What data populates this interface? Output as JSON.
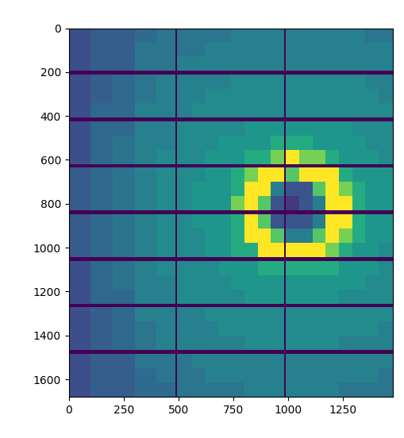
{
  "chart_data": {
    "type": "heatmap",
    "x_edges": [
      0,
      100,
      200,
      300,
      400,
      487,
      494,
      560,
      620,
      680,
      740,
      800,
      860,
      920,
      981,
      988,
      1050,
      1110,
      1170,
      1230,
      1290,
      1350,
      1410,
      1475
    ],
    "y_edges": [
      0,
      65,
      130,
      195,
      212,
      277,
      342,
      407,
      424,
      489,
      554,
      619,
      636,
      701,
      766,
      831,
      848,
      913,
      978,
      1043,
      1060,
      1125,
      1190,
      1255,
      1272,
      1337,
      1402,
      1467,
      1484,
      1549,
      1614,
      1679
    ],
    "cells": [
      [
        2.3,
        2.8,
        2.8,
        3.3,
        3.7,
        0,
        3.7,
        3.7,
        3.7,
        3.7,
        4.1,
        4.1,
        4.1,
        4.1,
        0,
        4.1,
        4.1,
        4.1,
        4.1,
        4.1,
        4.1,
        3.7,
        3.7
      ],
      [
        2.3,
        2.8,
        2.8,
        3.7,
        3.7,
        0,
        3.7,
        3.7,
        4.1,
        4.1,
        4.1,
        4.1,
        4.1,
        4.1,
        0,
        4.1,
        4.1,
        4.1,
        4.1,
        4.1,
        4.1,
        4.1,
        4.1
      ],
      [
        2.3,
        2.8,
        2.8,
        3.7,
        3.7,
        0,
        4.1,
        4.1,
        4.1,
        4.1,
        4.1,
        4.1,
        4.1,
        4.1,
        0,
        4.1,
        4.1,
        4.1,
        4.1,
        4.1,
        4.1,
        4.1,
        4.1
      ],
      [
        0,
        0,
        0,
        0,
        0,
        0,
        0,
        0,
        0,
        0,
        0,
        0,
        0,
        0,
        0,
        0,
        0,
        0,
        0,
        0,
        0,
        0,
        0
      ],
      [
        2.3,
        2.8,
        3.2,
        3.7,
        4.1,
        0,
        4.1,
        4.1,
        4.1,
        4.1,
        4.5,
        4.5,
        4.5,
        4.5,
        0,
        4.5,
        4.5,
        4.5,
        4.5,
        4.5,
        4.5,
        4.1,
        4.1
      ],
      [
        2.3,
        2.8,
        3.2,
        3.7,
        4.1,
        0,
        4.1,
        4.1,
        4.5,
        4.5,
        4.5,
        4.5,
        4.5,
        4.5,
        0,
        4.5,
        4.5,
        4.5,
        4.5,
        4.5,
        4.5,
        4.5,
        4.1
      ],
      [
        2.3,
        3.2,
        3.2,
        4.1,
        4.1,
        0,
        4.1,
        4.5,
        4.5,
        4.5,
        4.5,
        4.5,
        4.5,
        4.5,
        0,
        4.5,
        4.5,
        4.5,
        4.5,
        4.5,
        4.5,
        4.5,
        4.5
      ],
      [
        0,
        0,
        0,
        0,
        0,
        0,
        0,
        0,
        0,
        0,
        0,
        0,
        0,
        0,
        0,
        0,
        0,
        0,
        0,
        0,
        0,
        0,
        0
      ],
      [
        2.3,
        3.2,
        3.2,
        4.1,
        4.1,
        0,
        4.5,
        4.5,
        4.5,
        4.5,
        4.5,
        5,
        5,
        5,
        0,
        5,
        5,
        5,
        5,
        5,
        4.5,
        4.5,
        4.5
      ],
      [
        2.3,
        3.2,
        3.6,
        4.1,
        4.1,
        0,
        4.5,
        4.5,
        4.5,
        5,
        5,
        5,
        5,
        5.8,
        0,
        5.8,
        5.8,
        5,
        5,
        5,
        5,
        4.5,
        4.5
      ],
      [
        2.3,
        3.2,
        3.6,
        4.1,
        4.5,
        0,
        4.5,
        4.5,
        5,
        5,
        5,
        5.8,
        5.8,
        7.5,
        0,
        9.5,
        7.5,
        7.5,
        5.8,
        5,
        5,
        5,
        4.5
      ],
      [
        0,
        0,
        0,
        0,
        0,
        0,
        0,
        0,
        0,
        0,
        0,
        0,
        0,
        0,
        0,
        0,
        0,
        0,
        0,
        0,
        0,
        0,
        0
      ],
      [
        2.7,
        3.2,
        3.6,
        4.1,
        4.5,
        0,
        4.5,
        4.5,
        5,
        5,
        5.8,
        7.5,
        9.5,
        9.5,
        0,
        7,
        9.5,
        9.5,
        9.5,
        5.8,
        5,
        5,
        5
      ],
      [
        2.7,
        3.2,
        3.6,
        4.1,
        4.5,
        0,
        4.5,
        5,
        5,
        5,
        5.8,
        9.5,
        9.5,
        4,
        0,
        2.5,
        2.5,
        7,
        9.5,
        7.5,
        5.8,
        5,
        5
      ],
      [
        2.7,
        3.2,
        3.6,
        4.1,
        4.5,
        0,
        4.5,
        5,
        5,
        5,
        7.5,
        9.5,
        7,
        2.5,
        0,
        1.5,
        2.5,
        4,
        9.5,
        9.5,
        5.8,
        5,
        5
      ],
      [
        0,
        0,
        0,
        0,
        0,
        0,
        0,
        0,
        0,
        0,
        0,
        0,
        0,
        0,
        0,
        0,
        0,
        0,
        0,
        0,
        0,
        0,
        0
      ],
      [
        2.7,
        3.2,
        3.6,
        4.1,
        4.5,
        0,
        4.5,
        5,
        5,
        5,
        5.8,
        9.5,
        7,
        2.5,
        0,
        2.5,
        2.5,
        4,
        9.5,
        9.5,
        5.8,
        5,
        5
      ],
      [
        2.7,
        3.2,
        3.6,
        4.1,
        4.5,
        0,
        4.5,
        4.5,
        5,
        5,
        5.8,
        9.5,
        9.5,
        7,
        0,
        4,
        4,
        7,
        9.5,
        7.5,
        5.8,
        5,
        5
      ],
      [
        2.7,
        3.2,
        3.6,
        4.1,
        4.5,
        0,
        4.5,
        4.5,
        5,
        5,
        5.8,
        5.8,
        9.5,
        9.5,
        0,
        9.5,
        9.5,
        9.5,
        7.5,
        5.8,
        5,
        5,
        4.5
      ],
      [
        0,
        0,
        0,
        0,
        0,
        0,
        0,
        0,
        0,
        0,
        0,
        0,
        0,
        0,
        0,
        0,
        0,
        0,
        0,
        0,
        0,
        0,
        0
      ],
      [
        2.3,
        3.2,
        3.6,
        4.1,
        4.5,
        0,
        4.5,
        4.5,
        4.5,
        5,
        5,
        5,
        5.8,
        5.8,
        0,
        5.8,
        5.8,
        5.8,
        5.8,
        5,
        5,
        5,
        4.5
      ],
      [
        2.3,
        3.2,
        3.6,
        4.1,
        4.1,
        0,
        4.5,
        4.5,
        4.5,
        4.5,
        5,
        5,
        5,
        5,
        0,
        5,
        5,
        5,
        5,
        5,
        5,
        4.5,
        4.5
      ],
      [
        2.3,
        3.2,
        3.2,
        4.1,
        4.1,
        0,
        4.5,
        4.5,
        4.5,
        4.5,
        4.5,
        5,
        5,
        5,
        0,
        5,
        5,
        5,
        5,
        4.5,
        4.5,
        4.5,
        4.5
      ],
      [
        0,
        0,
        0,
        0,
        0,
        0,
        0,
        0,
        0,
        0,
        0,
        0,
        0,
        0,
        0,
        0,
        0,
        0,
        0,
        0,
        0,
        0,
        0
      ],
      [
        2.3,
        2.8,
        3.2,
        4.1,
        4.1,
        0,
        4.1,
        4.1,
        4.5,
        4.5,
        4.5,
        4.5,
        4.5,
        4.5,
        0,
        4.5,
        4.5,
        4.5,
        4.5,
        4.5,
        4.5,
        4.5,
        4.5
      ],
      [
        2.3,
        2.8,
        3.2,
        3.7,
        4.1,
        0,
        4.1,
        4.1,
        4.1,
        4.5,
        4.5,
        4.5,
        4.5,
        4.5,
        0,
        4.5,
        4.5,
        4.5,
        4.5,
        4.5,
        4.5,
        4.5,
        4.1
      ],
      [
        2.3,
        2.8,
        3.2,
        3.7,
        4.1,
        0,
        4.1,
        4.1,
        4.1,
        4.1,
        4.1,
        4.5,
        4.5,
        4.5,
        0,
        4.5,
        4.5,
        4.5,
        4.5,
        4.1,
        4.1,
        4.1,
        4.1
      ],
      [
        0,
        0,
        0,
        0,
        0,
        0,
        0,
        0,
        0,
        0,
        0,
        0,
        0,
        0,
        0,
        0,
        0,
        0,
        0,
        0,
        0,
        0,
        0
      ],
      [
        2.3,
        2.8,
        2.8,
        3.7,
        3.7,
        0,
        3.7,
        4.1,
        4.1,
        4.1,
        4.1,
        4.1,
        4.1,
        4.1,
        0,
        4.1,
        4.1,
        4.1,
        4.1,
        4.1,
        4.1,
        4.1,
        4.1
      ],
      [
        2.3,
        2.8,
        2.8,
        3.3,
        3.7,
        0,
        3.7,
        3.7,
        4.1,
        4.1,
        4.1,
        4.1,
        4.1,
        4.1,
        0,
        4.1,
        4.1,
        4.1,
        4.1,
        4.1,
        4.1,
        4.1,
        3.7
      ],
      [
        2.3,
        2.8,
        2.8,
        3.3,
        3.3,
        0,
        3.7,
        3.7,
        3.7,
        3.7,
        3.7,
        4.1,
        4.1,
        4.1,
        0,
        4.1,
        4.1,
        4.1,
        4.1,
        3.7,
        3.7,
        3.7,
        3.7
      ]
    ],
    "xlim": [
      0,
      1475
    ],
    "ylim": [
      1679,
      0
    ],
    "xticks": [
      0,
      250,
      500,
      750,
      1000,
      1250
    ],
    "yticks": [
      0,
      200,
      400,
      600,
      800,
      1000,
      1200,
      1400,
      1600
    ],
    "grid": false
  }
}
